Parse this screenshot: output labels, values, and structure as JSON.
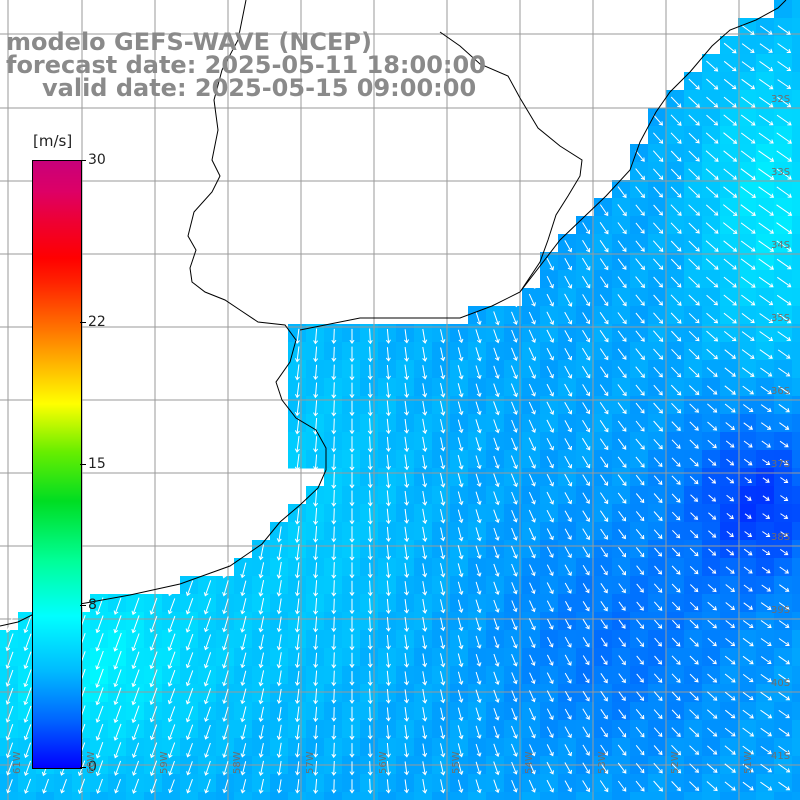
{
  "title": {
    "line1": "modelo GEFS-WAVE (NCEP)",
    "line2": "forecast date: 2025-05-11 18:00:00",
    "line3": "valid date: 2025-05-15 09:00:00"
  },
  "colorbar": {
    "unit": "[m/s]",
    "min": 0,
    "max": 30,
    "ticks": [
      {
        "value": 30,
        "label": "30"
      },
      {
        "value": 22,
        "label": "22"
      },
      {
        "value": 15,
        "label": "15"
      },
      {
        "value": 8,
        "label": "8"
      },
      {
        "value": 0,
        "label": "0"
      }
    ]
  },
  "grid": {
    "lat_labels": [
      "32S",
      "33S",
      "34S",
      "35S",
      "36S",
      "37S",
      "38S",
      "39S",
      "40S",
      "41S"
    ],
    "lon_labels": [
      "61W",
      "60W",
      "59W",
      "58W",
      "57W",
      "56W",
      "55W",
      "54W",
      "53W",
      "52W",
      "51W"
    ]
  },
  "colors": {
    "land": "#ffffff",
    "coast": "#000000",
    "grid_line": "#9a9a9a",
    "arrows": "#ffffff",
    "title_text": "#8a8a8a"
  },
  "variable": "wind speed and direction"
}
